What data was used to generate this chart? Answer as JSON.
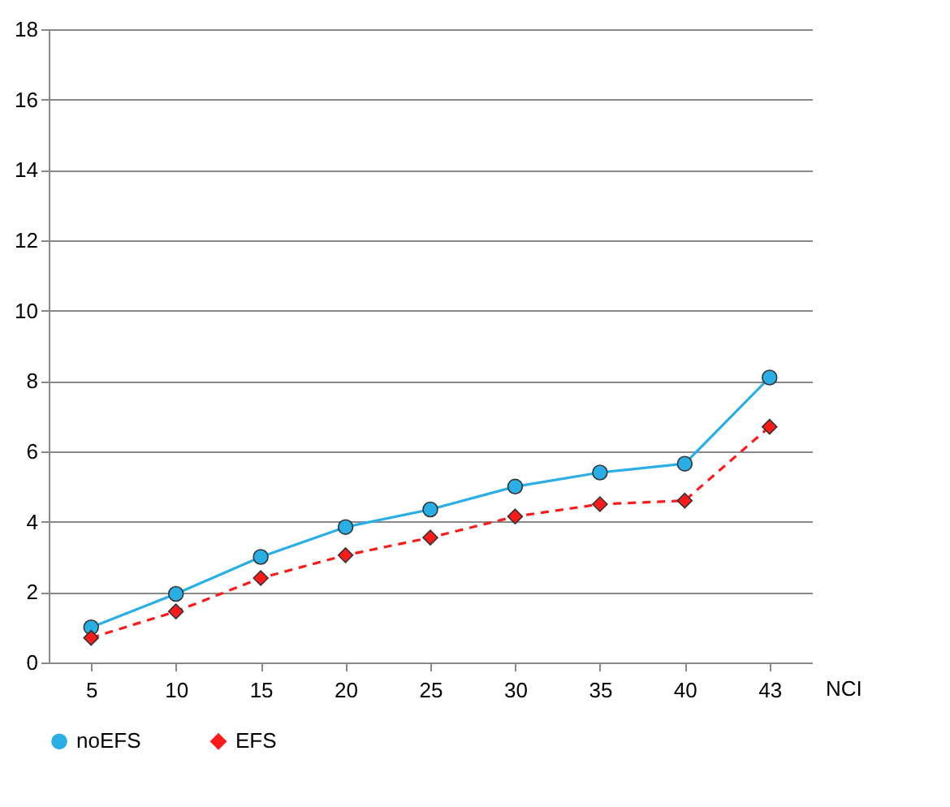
{
  "chart_data": {
    "type": "line",
    "xlabel": "NCI",
    "categories": [
      "5",
      "10",
      "15",
      "20",
      "25",
      "30",
      "35",
      "40",
      "43"
    ],
    "series": [
      {
        "name": "noEFS",
        "color": "#29aee6",
        "marker": "circle",
        "line_style": "solid",
        "values": [
          1.0,
          1.95,
          3.0,
          3.85,
          4.35,
          5.0,
          5.4,
          5.65,
          8.1
        ]
      },
      {
        "name": "EFS",
        "color": "#ff1a1a",
        "marker": "diamond",
        "line_style": "dashed",
        "values": [
          0.7,
          1.45,
          2.4,
          3.05,
          3.55,
          4.15,
          4.5,
          4.6,
          6.7
        ]
      }
    ],
    "ylim": [
      0,
      18
    ],
    "yticks": [
      0,
      2,
      4,
      6,
      8,
      10,
      12,
      14,
      16,
      18
    ],
    "grid": "y",
    "legend": "bottom"
  }
}
